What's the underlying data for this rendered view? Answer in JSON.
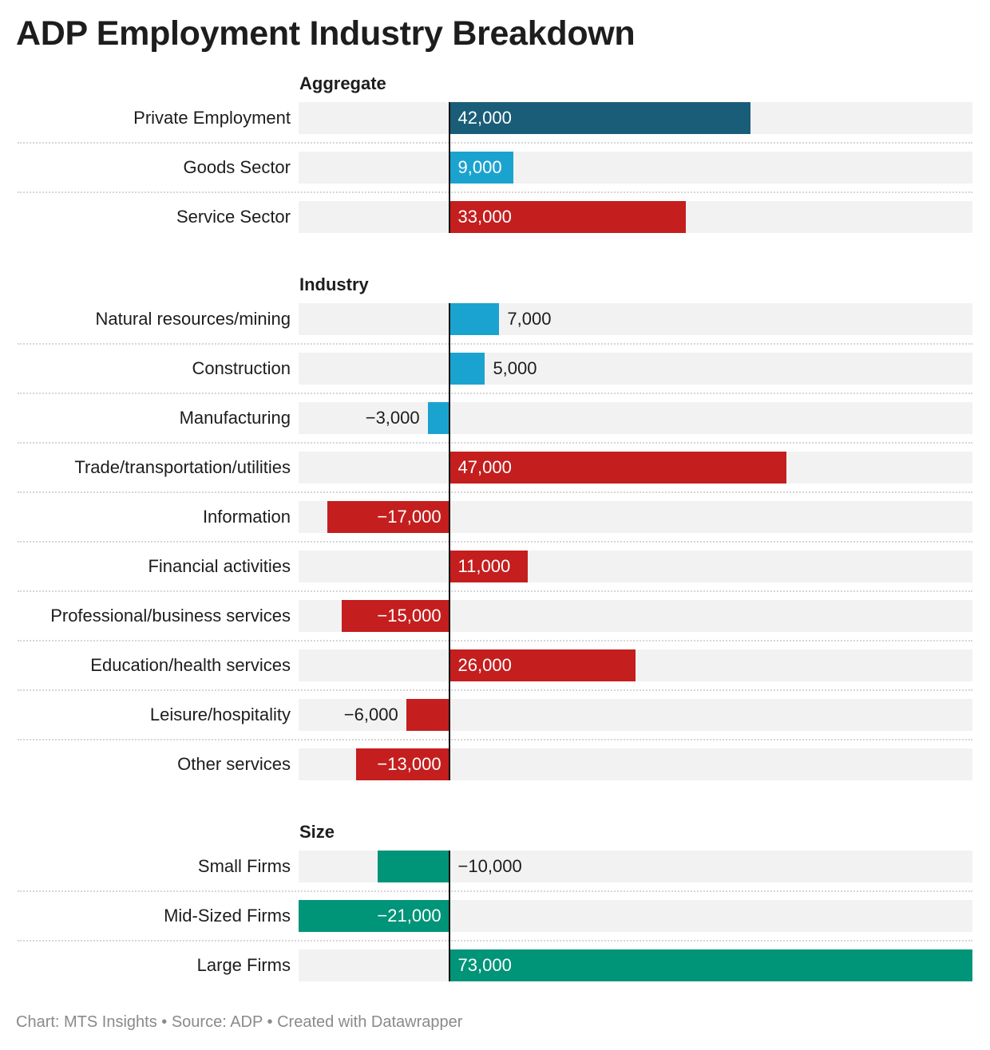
{
  "title": "ADP Employment Industry Breakdown",
  "footer": "Chart: MTS Insights • Source: ADP • Created with Datawrapper",
  "colors": {
    "dark_teal": "#1a5d78",
    "light_blue": "#1ba3d0",
    "red": "#c41e1e",
    "green": "#009478",
    "track": "#f2f2f2"
  },
  "chart_data": {
    "type": "bar",
    "orientation": "horizontal",
    "title": "ADP Employment Industry Breakdown",
    "xlim": [
      -21000,
      73000
    ],
    "grid": false,
    "groups": [
      {
        "name": "Aggregate",
        "items": [
          {
            "label": "Private Employment",
            "value": 42000,
            "display": "42,000",
            "color": "#1a5d78"
          },
          {
            "label": "Goods Sector",
            "value": 9000,
            "display": "9,000",
            "color": "#1ba3d0"
          },
          {
            "label": "Service Sector",
            "value": 33000,
            "display": "33,000",
            "color": "#c41e1e"
          }
        ]
      },
      {
        "name": "Industry",
        "items": [
          {
            "label": "Natural resources/mining",
            "value": 7000,
            "display": "7,000",
            "color": "#1ba3d0"
          },
          {
            "label": "Construction",
            "value": 5000,
            "display": "5,000",
            "color": "#1ba3d0"
          },
          {
            "label": "Manufacturing",
            "value": -3000,
            "display": "−3,000",
            "color": "#1ba3d0"
          },
          {
            "label": "Trade/transportation/utilities",
            "value": 47000,
            "display": "47,000",
            "color": "#c41e1e"
          },
          {
            "label": "Information",
            "value": -17000,
            "display": "−17,000",
            "color": "#c41e1e"
          },
          {
            "label": "Financial activities",
            "value": 11000,
            "display": "11,000",
            "color": "#c41e1e"
          },
          {
            "label": "Professional/business services",
            "value": -15000,
            "display": "−15,000",
            "color": "#c41e1e"
          },
          {
            "label": "Education/health services",
            "value": 26000,
            "display": "26,000",
            "color": "#c41e1e"
          },
          {
            "label": "Leisure/hospitality",
            "value": -6000,
            "display": "−6,000",
            "color": "#c41e1e"
          },
          {
            "label": "Other services",
            "value": -13000,
            "display": "−13,000",
            "color": "#c41e1e"
          }
        ]
      },
      {
        "name": "Size",
        "items": [
          {
            "label": "Small Firms",
            "value": -10000,
            "display": "−10,000",
            "color": "#009478"
          },
          {
            "label": "Mid-Sized Firms",
            "value": -21000,
            "display": "−21,000",
            "color": "#009478"
          },
          {
            "label": "Large Firms",
            "value": 73000,
            "display": "73,000",
            "color": "#009478"
          }
        ]
      }
    ]
  }
}
